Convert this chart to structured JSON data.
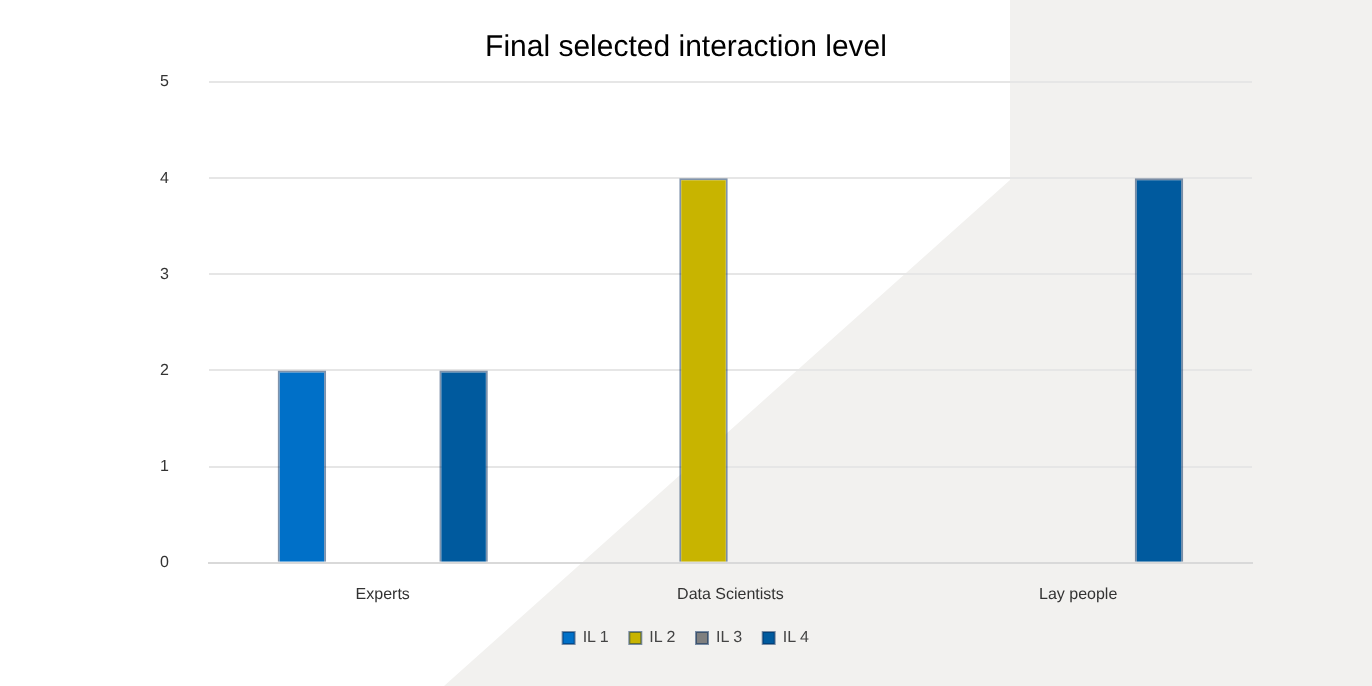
{
  "chart_data": {
    "type": "bar",
    "title": "Final selected interaction level",
    "categories": [
      "Experts",
      "Data Scientists",
      "Lay people"
    ],
    "series": [
      {
        "name": "IL 1",
        "color": "#0070c8",
        "values": [
          2,
          0,
          0
        ]
      },
      {
        "name": "IL 2",
        "color": "#c8b400",
        "values": [
          0,
          4,
          0
        ]
      },
      {
        "name": "IL 3",
        "color": "#7f7f7f",
        "values": [
          0,
          0,
          0
        ]
      },
      {
        "name": "IL 4",
        "color": "#005a9e",
        "values": [
          2,
          0,
          4
        ]
      }
    ],
    "ylim": [
      0,
      5
    ],
    "yticks": [
      0,
      1,
      2,
      3,
      4,
      5
    ],
    "grid": "y",
    "legend": "bottom"
  }
}
